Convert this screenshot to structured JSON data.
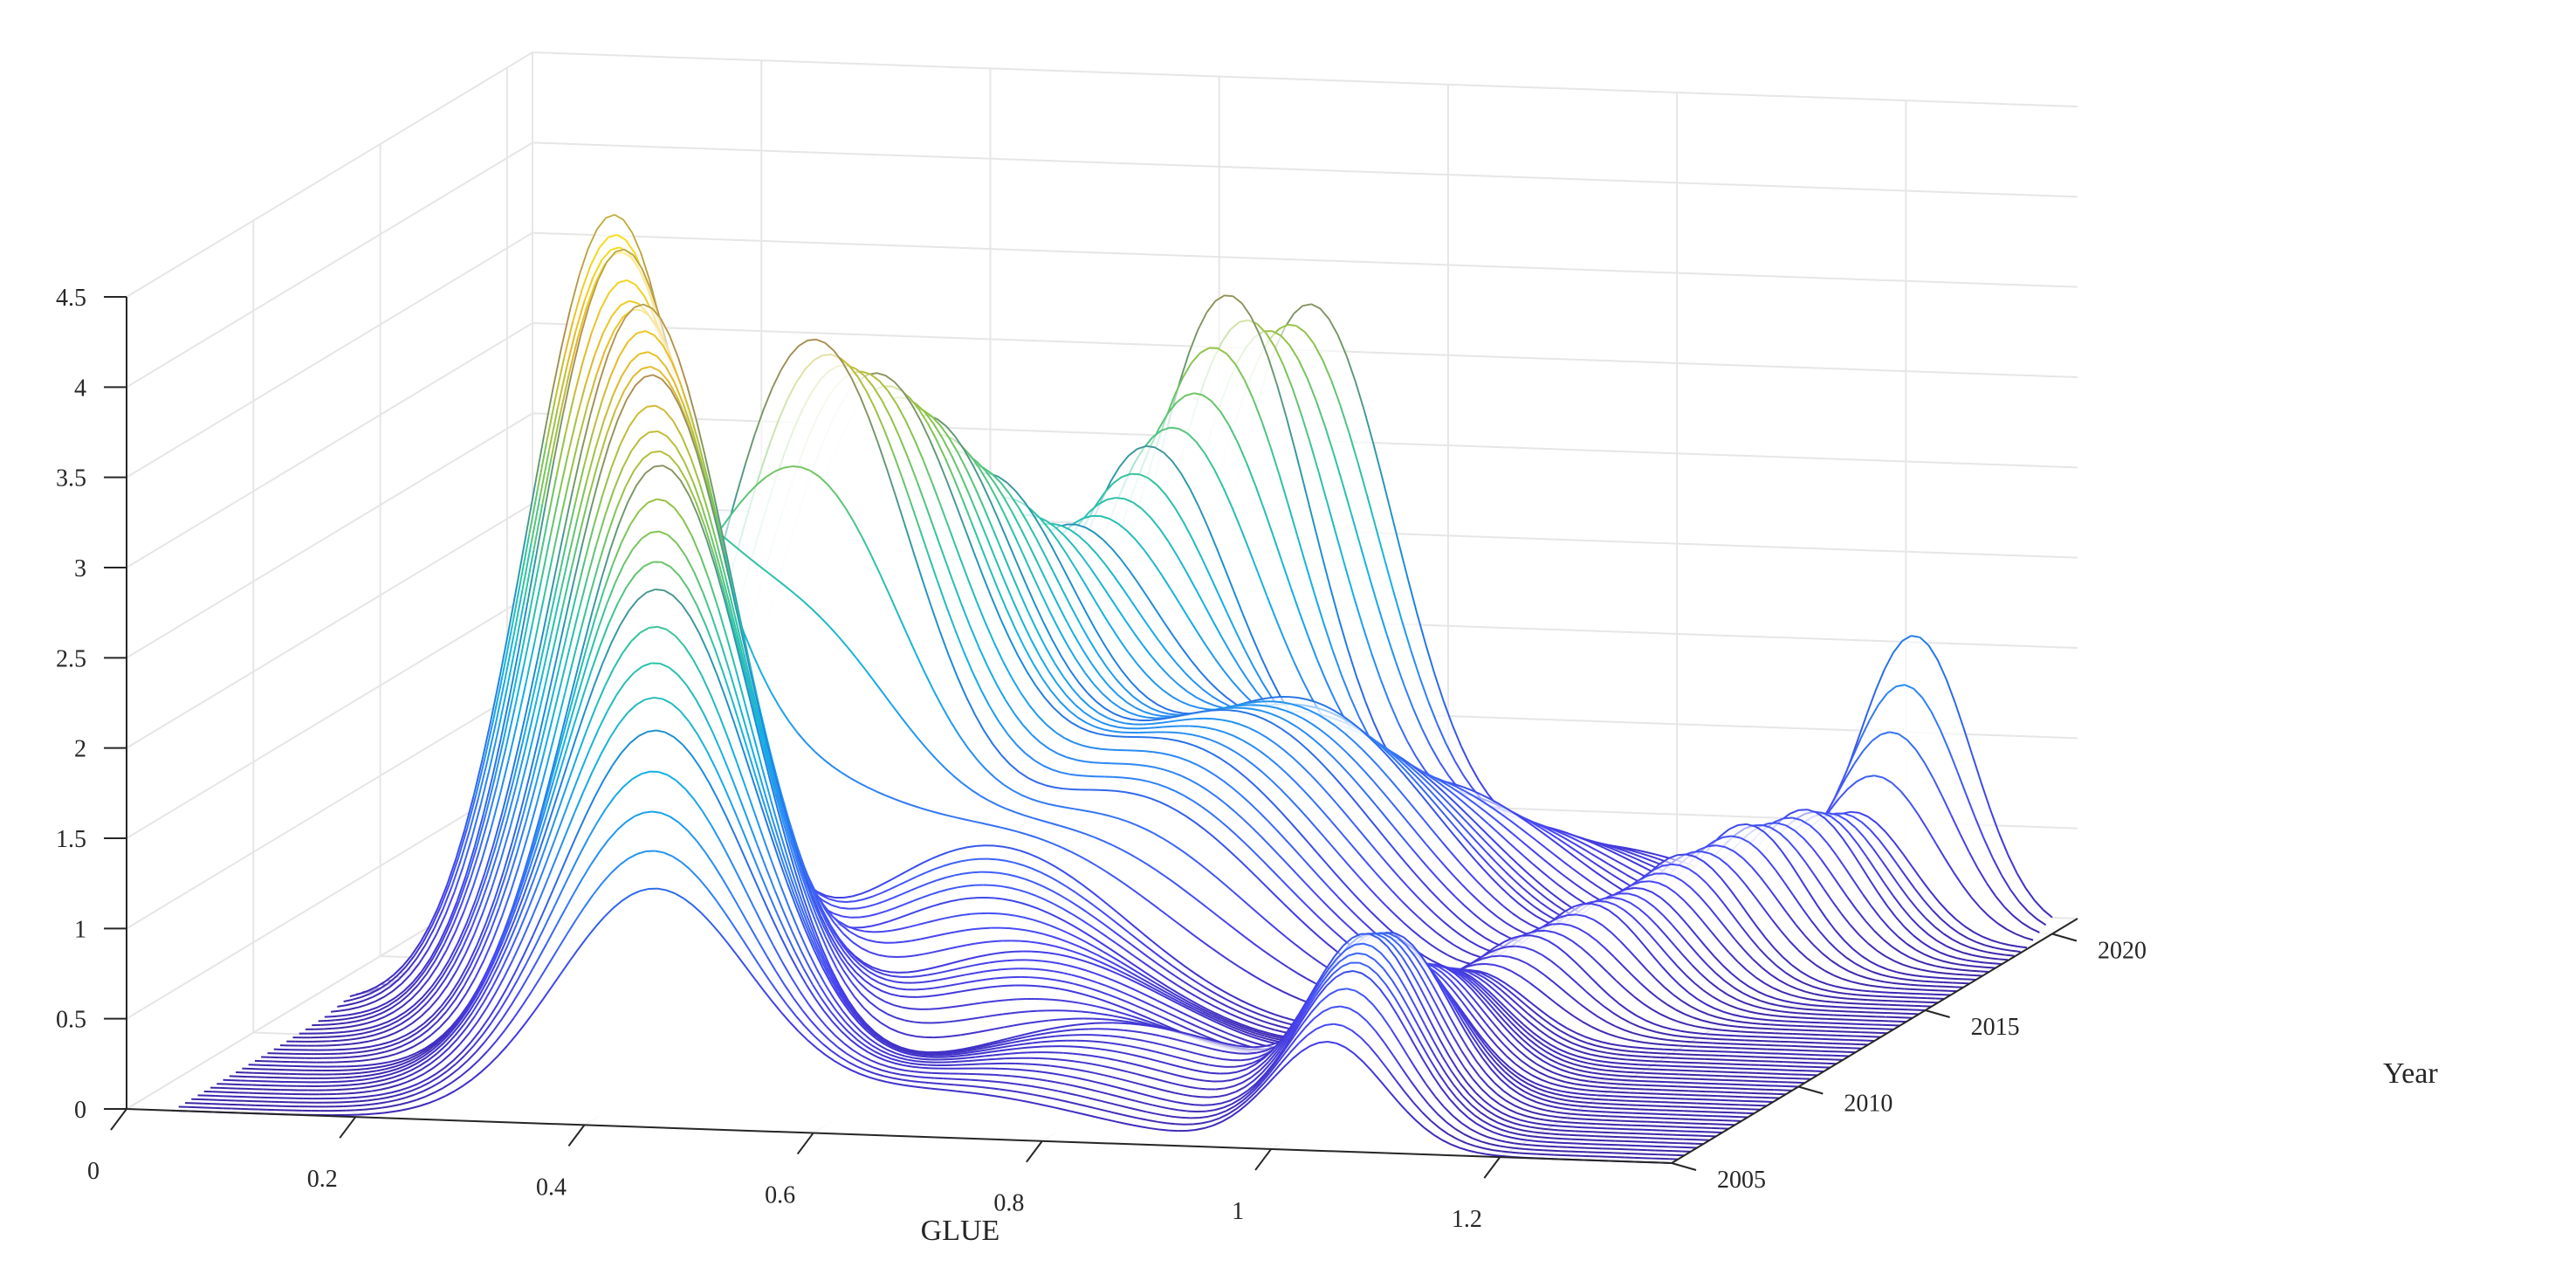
{
  "chart_data": {
    "type": "surface",
    "title": "",
    "xlabel": "GLUE",
    "ylabel": "Year",
    "zlabel": "",
    "x_ticks": [
      "0",
      "0.2",
      "0.4",
      "0.6",
      "0.8",
      "1",
      "1.2"
    ],
    "y_ticks": [
      "2005",
      "2010",
      "2015",
      "2020"
    ],
    "z_ticks": [
      "0",
      "0.5",
      "1",
      "1.5",
      "2",
      "2.5",
      "3",
      "3.5",
      "4",
      "4.5"
    ],
    "xlim": [
      0,
      1.35
    ],
    "ylim": [
      2005,
      2021
    ],
    "zlim": [
      0,
      4.5
    ],
    "grid": true,
    "colormap": [
      "#3e26a8",
      "#4745f3",
      "#2f80f7",
      "#13b0e4",
      "#2fc4a0",
      "#8cc44b",
      "#e5b82a",
      "#fae51a"
    ],
    "years": [
      2005,
      2006,
      2007,
      2008,
      2009,
      2010,
      2011,
      2012,
      2013,
      2014,
      2015,
      2016,
      2017,
      2018,
      2019,
      2020
    ],
    "density_peaks": [
      {
        "year": 2005,
        "peaks": [
          {
            "x": 0.46,
            "h": 1.3,
            "w": 0.085
          },
          {
            "x": 1.05,
            "h": 0.6,
            "w": 0.05
          },
          {
            "x": 0.72,
            "h": 0.25,
            "w": 0.12
          }
        ]
      },
      {
        "year": 2006,
        "peaks": [
          {
            "x": 0.44,
            "h": 2.1,
            "w": 0.085
          },
          {
            "x": 1.05,
            "h": 0.9,
            "w": 0.05
          },
          {
            "x": 0.75,
            "h": 0.3,
            "w": 0.12
          }
        ]
      },
      {
        "year": 2007,
        "peaks": [
          {
            "x": 0.42,
            "h": 2.8,
            "w": 0.085
          },
          {
            "x": 1.04,
            "h": 1.0,
            "w": 0.05
          },
          {
            "x": 0.78,
            "h": 0.35,
            "w": 0.12
          }
        ]
      },
      {
        "year": 2008,
        "peaks": [
          {
            "x": 0.4,
            "h": 3.4,
            "w": 0.08
          },
          {
            "x": 1.04,
            "h": 0.9,
            "w": 0.05
          },
          {
            "x": 0.8,
            "h": 0.4,
            "w": 0.12
          }
        ]
      },
      {
        "year": 2009,
        "peaks": [
          {
            "x": 0.37,
            "h": 3.8,
            "w": 0.08
          },
          {
            "x": 1.03,
            "h": 0.7,
            "w": 0.05
          },
          {
            "x": 0.7,
            "h": 0.5,
            "w": 0.12
          }
        ]
      },
      {
        "year": 2010,
        "peaks": [
          {
            "x": 0.34,
            "h": 4.1,
            "w": 0.08
          },
          {
            "x": 1.03,
            "h": 0.6,
            "w": 0.05
          },
          {
            "x": 0.68,
            "h": 0.6,
            "w": 0.12
          }
        ]
      },
      {
        "year": 2011,
        "peaks": [
          {
            "x": 0.3,
            "h": 4.3,
            "w": 0.075
          },
          {
            "x": 1.02,
            "h": 0.5,
            "w": 0.05
          },
          {
            "x": 0.62,
            "h": 0.8,
            "w": 0.12
          }
        ]
      },
      {
        "year": 2012,
        "peaks": [
          {
            "x": 0.27,
            "h": 4.4,
            "w": 0.075
          },
          {
            "x": 1.02,
            "h": 0.4,
            "w": 0.05
          },
          {
            "x": 0.6,
            "h": 1.0,
            "w": 0.12
          }
        ]
      },
      {
        "year": 2013,
        "peaks": [
          {
            "x": 0.42,
            "h": 3.6,
            "w": 0.09
          },
          {
            "x": 1.05,
            "h": 0.5,
            "w": 0.05
          },
          {
            "x": 0.7,
            "h": 1.2,
            "w": 0.12
          }
        ]
      },
      {
        "year": 2014,
        "peaks": [
          {
            "x": 0.45,
            "h": 3.3,
            "w": 0.09
          },
          {
            "x": 1.08,
            "h": 0.6,
            "w": 0.05
          },
          {
            "x": 0.72,
            "h": 1.4,
            "w": 0.12
          }
        ]
      },
      {
        "year": 2015,
        "peaks": [
          {
            "x": 0.47,
            "h": 3.0,
            "w": 0.09
          },
          {
            "x": 1.1,
            "h": 0.6,
            "w": 0.05
          },
          {
            "x": 0.75,
            "h": 1.5,
            "w": 0.12
          }
        ]
      },
      {
        "year": 2016,
        "peaks": [
          {
            "x": 0.5,
            "h": 2.6,
            "w": 0.09
          },
          {
            "x": 1.12,
            "h": 0.7,
            "w": 0.05
          },
          {
            "x": 0.78,
            "h": 1.5,
            "w": 0.12
          }
        ]
      },
      {
        "year": 2017,
        "peaks": [
          {
            "x": 0.55,
            "h": 2.2,
            "w": 0.09
          },
          {
            "x": 1.15,
            "h": 0.8,
            "w": 0.05
          },
          {
            "x": 0.8,
            "h": 1.2,
            "w": 0.12
          }
        ]
      },
      {
        "year": 2018,
        "peaks": [
          {
            "x": 0.6,
            "h": 2.6,
            "w": 0.08
          },
          {
            "x": 1.18,
            "h": 0.8,
            "w": 0.05
          },
          {
            "x": 0.85,
            "h": 0.9,
            "w": 0.12
          }
        ]
      },
      {
        "year": 2019,
        "peaks": [
          {
            "x": 0.65,
            "h": 3.4,
            "w": 0.075
          },
          {
            "x": 1.2,
            "h": 0.7,
            "w": 0.05
          },
          {
            "x": 0.9,
            "h": 0.6,
            "w": 0.12
          }
        ]
      },
      {
        "year": 2020,
        "peaks": [
          {
            "x": 0.7,
            "h": 3.3,
            "w": 0.075
          },
          {
            "x": 1.23,
            "h": 1.6,
            "w": 0.05
          },
          {
            "x": 0.95,
            "h": 0.4,
            "w": 0.12
          }
        ]
      }
    ]
  }
}
